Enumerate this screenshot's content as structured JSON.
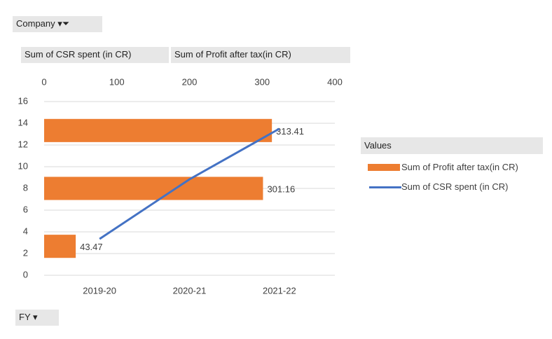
{
  "field_buttons": {
    "filter": "Company",
    "values": [
      "Sum of CSR spent (in CR)",
      "Sum of Profit after tax(in CR)"
    ],
    "axis": "FY"
  },
  "chart_data": {
    "type": "combo",
    "categories": [
      "2019-20",
      "2020-21",
      "2021-22"
    ],
    "series": [
      {
        "name": "Sum of Profit after tax(in CR)",
        "type": "bar",
        "color": "#ed7d31",
        "values": [
          43.47,
          301.16,
          313.41
        ],
        "axis": "x2",
        "data_labels": true
      },
      {
        "name": "Sum of CSR spent (in CR)",
        "type": "line",
        "color": "#4472c4",
        "values": [
          3.35,
          8.84,
          13.5
        ],
        "axis": "y"
      }
    ],
    "x2lim": [
      0,
      400
    ],
    "x2ticks": [
      0,
      100,
      200,
      300,
      400
    ],
    "ylim": [
      0,
      16
    ],
    "yticks": [
      0,
      2,
      4,
      6,
      8,
      10,
      12,
      14,
      16
    ],
    "grid": true,
    "legend_title": "Values",
    "legend": "right"
  }
}
